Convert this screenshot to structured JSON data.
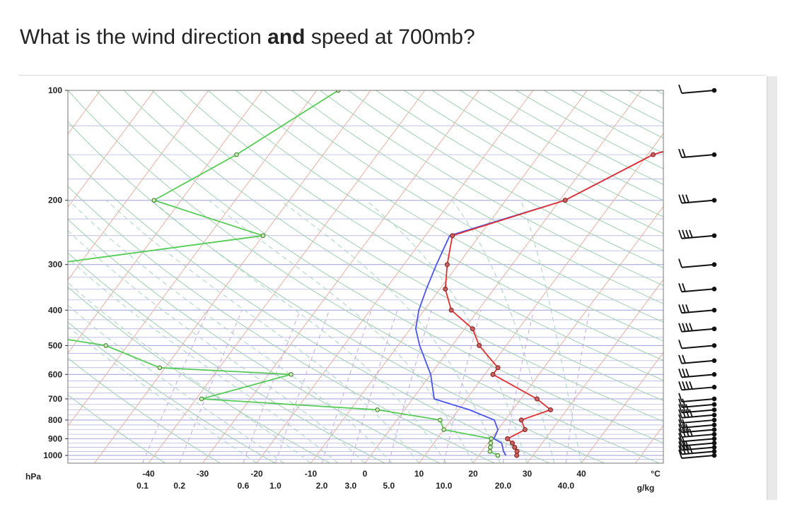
{
  "question": {
    "before": "What is the wind direction ",
    "emphasis": "and",
    "after": " speed at 700mb?"
  },
  "colors": {
    "temperature": "#e03030",
    "dewpoint": "#4a55ee",
    "green_profile": "#55cc55",
    "isotherm": "#e8b0a0",
    "dry_adiabat": "#9ed0b0",
    "moist_adiabat": "#a8d4c0",
    "mixing_ratio": "#c9a8e0",
    "isobar": "#9a9ad8"
  },
  "chart_data": {
    "type": "skew-t",
    "pressure_ticks": [
      100,
      200,
      300,
      400,
      500,
      600,
      700,
      800,
      900,
      1000
    ],
    "pressure_unit": "hPa",
    "temp_ticks": [
      -40,
      -30,
      -20,
      -10,
      0,
      10,
      20,
      30,
      40
    ],
    "temp_unit": "°C",
    "mixing_ratio_ticks": [
      "0.1",
      "0.2",
      "0.6",
      "1.0",
      "2.0",
      "3.0",
      "5.0",
      "10.0",
      "20.0",
      "40.0"
    ],
    "mixing_ratio_unit": "g/kg",
    "temperature": [
      {
        "p": 1000,
        "t": 27
      },
      {
        "p": 975,
        "t": 26.5
      },
      {
        "p": 950,
        "t": 25.5
      },
      {
        "p": 925,
        "t": 24.5
      },
      {
        "p": 900,
        "t": 23
      },
      {
        "p": 850,
        "t": 25
      },
      {
        "p": 800,
        "t": 23
      },
      {
        "p": 750,
        "t": 27
      },
      {
        "p": 700,
        "t": 23
      },
      {
        "p": 600,
        "t": 11.5
      },
      {
        "p": 575,
        "t": 11.5
      },
      {
        "p": 500,
        "t": 5
      },
      {
        "p": 450,
        "t": 1.5
      },
      {
        "p": 400,
        "t": -5
      },
      {
        "p": 350,
        "t": -9
      },
      {
        "p": 300,
        "t": -12
      },
      {
        "p": 250,
        "t": -15
      },
      {
        "p": 200,
        "t": 1
      },
      {
        "p": 150,
        "t": 11
      },
      {
        "p": 100,
        "t": 42
      }
    ],
    "dewpoint": [
      {
        "p": 1000,
        "t": 25
      },
      {
        "p": 975,
        "t": 24
      },
      {
        "p": 950,
        "t": 23.3
      },
      {
        "p": 925,
        "t": 22.5
      },
      {
        "p": 900,
        "t": 20.5
      },
      {
        "p": 850,
        "t": 20
      },
      {
        "p": 800,
        "t": 18
      },
      {
        "p": 750,
        "t": 12
      },
      {
        "p": 700,
        "t": 4
      },
      {
        "p": 600,
        "t": 0
      },
      {
        "p": 500,
        "t": -6
      },
      {
        "p": 450,
        "t": -9
      },
      {
        "p": 400,
        "t": -11
      },
      {
        "p": 350,
        "t": -12.5
      },
      {
        "p": 300,
        "t": -14
      },
      {
        "p": 250,
        "t": -15.5
      },
      {
        "p": 200,
        "t": 1
      },
      {
        "p": 150,
        "t": 11
      },
      {
        "p": 100,
        "t": 42
      }
    ],
    "green_profile": [
      {
        "p": 1000,
        "t": 23.5
      },
      {
        "p": 975,
        "t": 21.5
      },
      {
        "p": 950,
        "t": 21
      },
      {
        "p": 925,
        "t": 20.5
      },
      {
        "p": 900,
        "t": 20
      },
      {
        "p": 850,
        "t": 10
      },
      {
        "p": 800,
        "t": 8
      },
      {
        "p": 750,
        "t": -5
      },
      {
        "p": 700,
        "t": -39
      },
      {
        "p": 600,
        "t": -25.8
      },
      {
        "p": 575,
        "t": -51
      },
      {
        "p": 500,
        "t": -64
      },
      {
        "p": 450,
        "t": -86
      },
      {
        "p": 400,
        "t": -84
      },
      {
        "p": 350,
        "t": -85
      },
      {
        "p": 300,
        "t": -86
      },
      {
        "p": 250,
        "t": -50
      },
      {
        "p": 200,
        "t": -75
      },
      {
        "p": 150,
        "t": -66
      },
      {
        "p": 100,
        "t": -56
      }
    ],
    "wind_barb_levels": [
      100,
      150,
      200,
      250,
      300,
      350,
      400,
      450,
      500,
      550,
      600,
      650,
      700,
      725,
      750,
      775,
      800,
      825,
      850,
      875,
      900,
      925,
      950,
      975,
      1000
    ]
  }
}
